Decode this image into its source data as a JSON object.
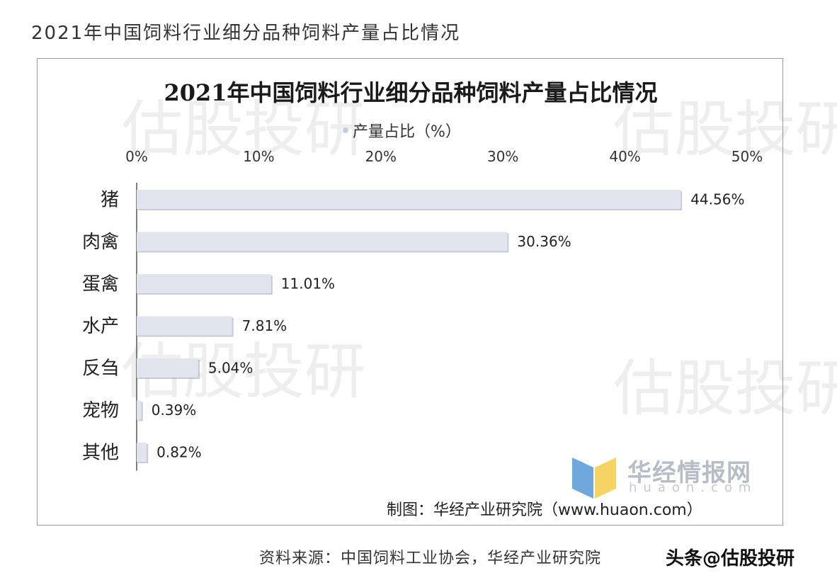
{
  "page": {
    "title": "2021年中国饲料行业细分品种饲料产量占比情况",
    "source": "资料来源：中国饲料工业协会，华经产业研究院",
    "attribution": "头条@估股投研"
  },
  "watermark": {
    "text": "估股投研"
  },
  "logo": {
    "name": "华经情报网",
    "domain": "huaon.com",
    "colors": [
      "#6fa8dc",
      "#f6d365"
    ]
  },
  "credit": "制图：华经产业研究院（www.huaon.com）",
  "colors": {
    "bar": "#e2e5ee",
    "bar_edge": "#9aa1b4",
    "axis": "#555555"
  },
  "chart_data": {
    "type": "bar",
    "orientation": "horizontal",
    "title": "2021年中国饲料行业细分品种饲料产量占比情况",
    "categories": [
      "猪",
      "肉禽",
      "蛋禽",
      "水产",
      "反刍",
      "宠物",
      "其他"
    ],
    "series": [
      {
        "name": "产量占比（%）",
        "values": [
          44.56,
          30.36,
          11.01,
          7.81,
          5.04,
          0.39,
          0.82
        ]
      }
    ],
    "data_labels": [
      "44.56%",
      "30.36%",
      "11.01%",
      "7.81%",
      "5.04%",
      "0.39%",
      "0.82%"
    ],
    "x_ticks": [
      "0%",
      "10%",
      "20%",
      "30%",
      "40%",
      "50%"
    ],
    "xlim": [
      0,
      50
    ],
    "axis_position": "top",
    "legend_position": "top",
    "grid": false
  }
}
